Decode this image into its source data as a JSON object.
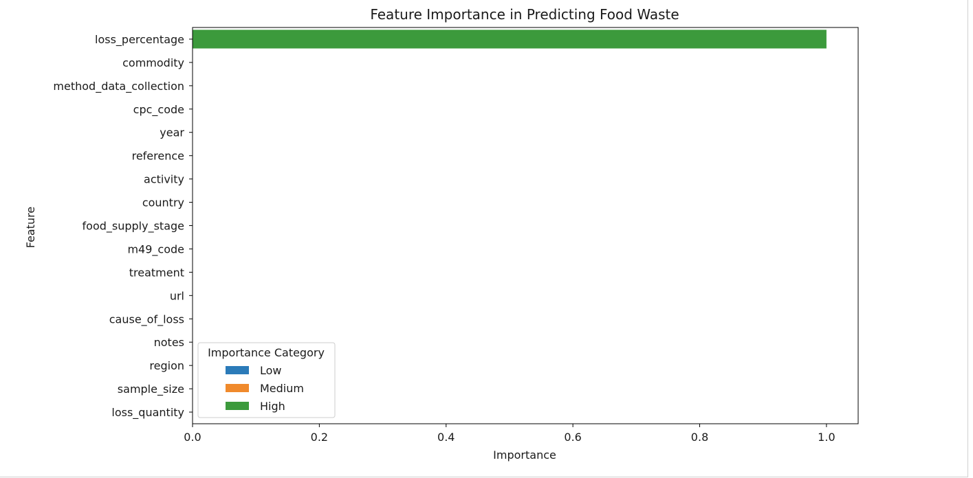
{
  "chart_data": {
    "type": "bar",
    "orientation": "horizontal",
    "title": "Feature Importance in Predicting Food Waste",
    "xlabel": "Importance",
    "ylabel": "Feature",
    "xlim": [
      0,
      1.05
    ],
    "xticks": [
      0.0,
      0.2,
      0.4,
      0.6,
      0.8,
      1.0
    ],
    "xtick_labels": [
      "0.0",
      "0.2",
      "0.4",
      "0.6",
      "0.8",
      "1.0"
    ],
    "grid": false,
    "categories": [
      "loss_percentage",
      "commodity",
      "method_data_collection",
      "cpc_code",
      "year",
      "reference",
      "activity",
      "country",
      "food_supply_stage",
      "m49_code",
      "treatment",
      "url",
      "cause_of_loss",
      "notes",
      "region",
      "sample_size",
      "loss_quantity"
    ],
    "values": [
      1.0,
      0,
      0,
      0,
      0,
      0,
      0,
      0,
      0,
      0,
      0,
      0,
      0,
      0,
      0,
      0,
      0
    ],
    "bar_categories": [
      "High",
      "Low",
      "Low",
      "Low",
      "Low",
      "Low",
      "Low",
      "Low",
      "Low",
      "Low",
      "Low",
      "Low",
      "Low",
      "Low",
      "Low",
      "Low",
      "Low"
    ],
    "legend": {
      "title": "Importance Category",
      "placement": "lower-left",
      "entries": [
        {
          "label": "Low",
          "color": "#2b7bb9"
        },
        {
          "label": "Medium",
          "color": "#f08a2c"
        },
        {
          "label": "High",
          "color": "#3c9a3c"
        }
      ]
    }
  }
}
